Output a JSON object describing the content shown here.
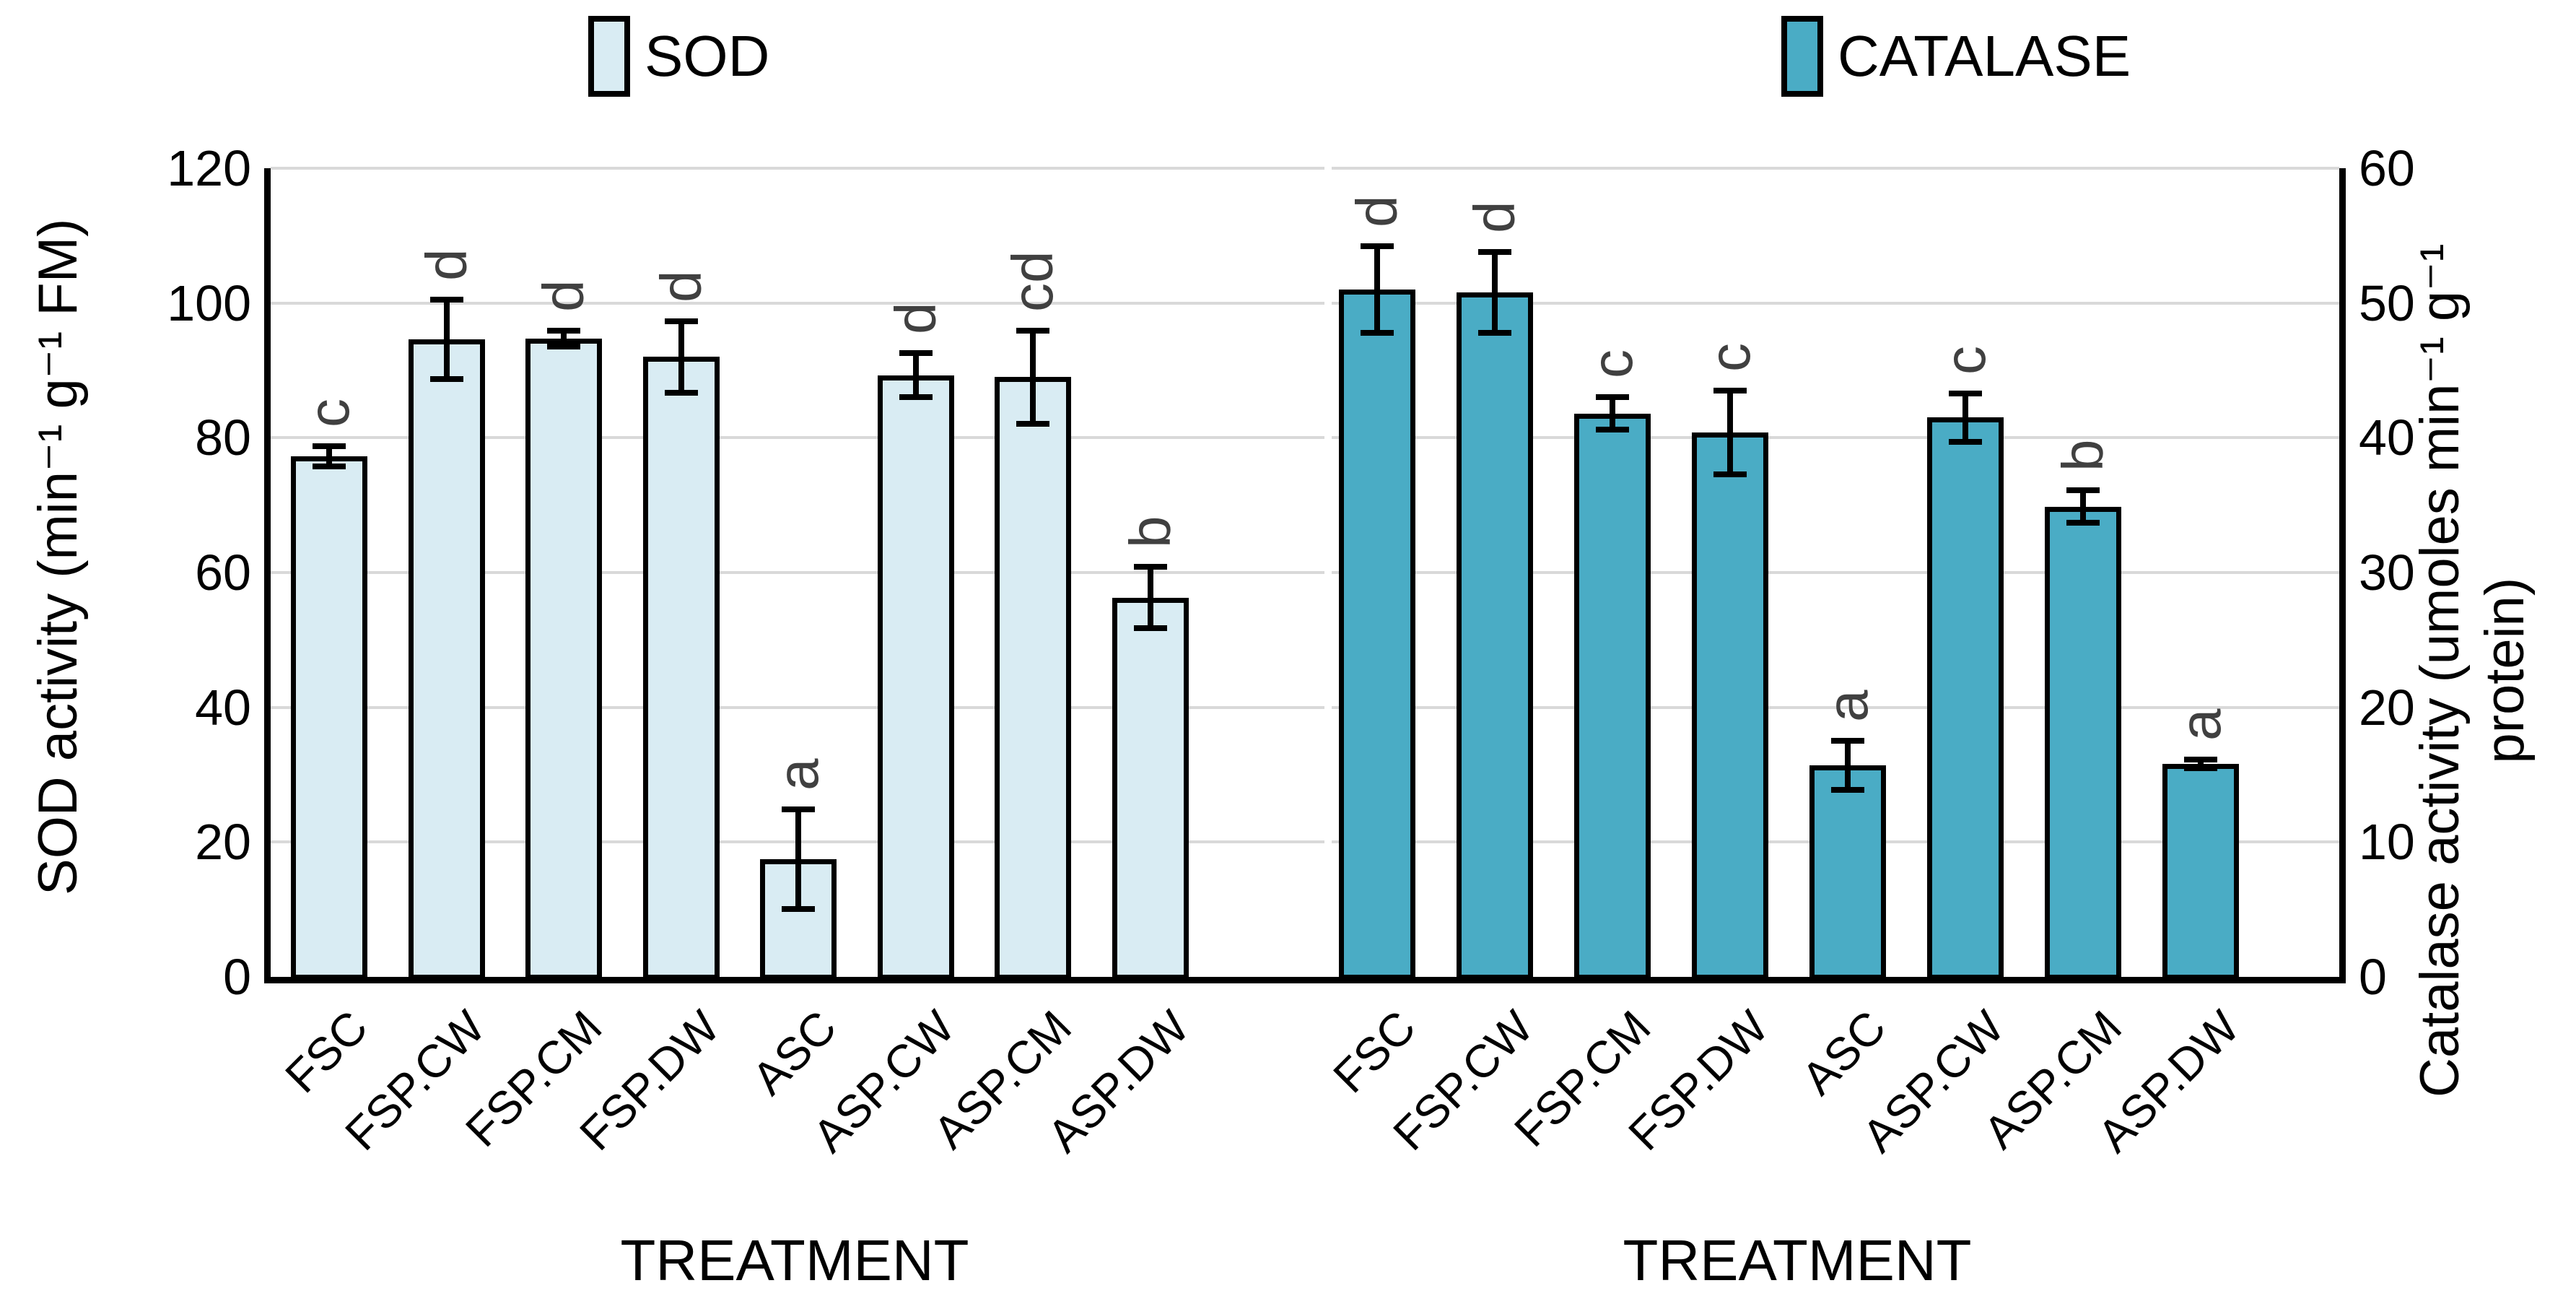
{
  "legend": {
    "items": [
      {
        "label": "SOD",
        "color": "#d9ecf3"
      },
      {
        "label": "CATALASE",
        "color": "#4aacc5"
      }
    ]
  },
  "colors": {
    "sod_fill": "#d9ecf3",
    "catalase_fill": "#4aacc5",
    "bar_border": "#000000",
    "gridline": "#d9d9d9",
    "sig_letter": "#404040",
    "background": "#ffffff"
  },
  "chart_data": [
    {
      "type": "bar",
      "series_name": "SOD",
      "categories": [
        "FSC",
        "FSP.CW",
        "FSP.CM",
        "FSP.DW",
        "ASC",
        "ASP.CW",
        "ASP.CM",
        "ASP.DW"
      ],
      "values": [
        77.3,
        94.6,
        94.7,
        92.0,
        17.5,
        89.3,
        89.0,
        56.3
      ],
      "errors": [
        1.5,
        5.9,
        1.2,
        5.3,
        7.4,
        3.3,
        6.9,
        4.6
      ],
      "sig_letters": [
        "c",
        "d",
        "d",
        "d",
        "a",
        "d",
        "cd",
        "b"
      ],
      "xlabel": "TREATMENT",
      "ylabel": "SOD activity (min⁻¹ g⁻¹ FM)",
      "ylim": [
        0,
        120
      ],
      "ytick_step": 20,
      "yticks": [
        0,
        20,
        40,
        60,
        80,
        100,
        120
      ],
      "bar_color": "#d9ecf3",
      "axis_side": "left",
      "grid": true,
      "legend_position": "top"
    },
    {
      "type": "bar",
      "series_name": "CATALASE",
      "categories": [
        "FSC",
        "FSP.CW",
        "FSP.CM",
        "FSP.DW",
        "ASC",
        "ASP.CW",
        "ASP.CM",
        "ASP.DW"
      ],
      "values": [
        51.0,
        50.8,
        41.8,
        40.4,
        15.7,
        41.5,
        34.9,
        15.8
      ],
      "errors": [
        3.2,
        3.0,
        1.2,
        3.1,
        1.8,
        1.8,
        1.2,
        0.3
      ],
      "sig_letters": [
        "d",
        "d",
        "c",
        "c",
        "a",
        "c",
        "b",
        "a"
      ],
      "xlabel": "TREATMENT",
      "ylabel": "Catalase activity (umoles min⁻¹ g⁻¹ protein)",
      "ylabel_line1": "Catalase activity (umoles min⁻¹ g⁻¹",
      "ylabel_line2": "protein)",
      "ylim": [
        0,
        60
      ],
      "ytick_step": 10,
      "yticks": [
        0,
        10,
        20,
        30,
        40,
        50,
        60
      ],
      "bar_color": "#4aacc5",
      "axis_side": "right",
      "grid": true,
      "legend_position": "top"
    }
  ]
}
